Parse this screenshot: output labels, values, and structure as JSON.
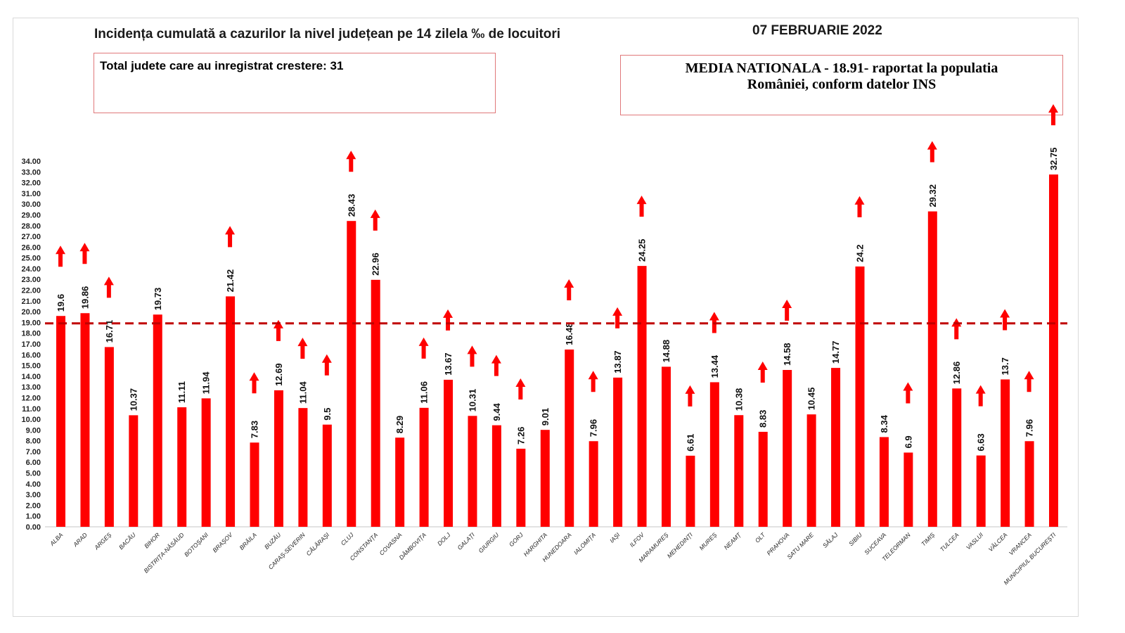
{
  "chart_data": {
    "type": "bar",
    "title": "Incidența cumulată a cazurilor la nivel județean pe 14 zilela ‰ de locuitori",
    "date": "07 FEBRUARIE 2022",
    "note_left": "Total judete care au inregistrat crestere: 31",
    "note_right_line1": "MEDIA NATIONALA - 18.91-  raportat la populatia",
    "note_right_line2": "României, conform datelor INS",
    "reference_line": {
      "value": 18.91,
      "style": "dashed",
      "color": "#c00000"
    },
    "ylim": [
      0,
      34
    ],
    "ytick_step": 1,
    "grid": false,
    "bar_color": "#ff0000",
    "arrow_color": "#ff0000",
    "categories": [
      "ALBA",
      "ARAD",
      "ARGEȘ",
      "BACĂU",
      "BIHOR",
      "BISTRIȚA-NĂSĂUD",
      "BOTOȘANI",
      "BRAȘOV",
      "BRĂILA",
      "BUZĂU",
      "CARAȘ-SEVERIN",
      "CĂLĂRAȘI",
      "CLUJ",
      "CONSTANȚA",
      "COVASNA",
      "DÂMBOVIȚA",
      "DOLJ",
      "GALAȚI",
      "GIURGIU",
      "GORJ",
      "HARGHITA",
      "HUNEDOARA",
      "IALOMIȚA",
      "IAȘI",
      "ILFOV",
      "MARAMUREȘ",
      "MEHEDINȚI",
      "MUREȘ",
      "NEAMȚ",
      "OLT",
      "PRAHOVA",
      "SATU MARE",
      "SĂLAJ",
      "SIBIU",
      "SUCEAVA",
      "TELEORMAN",
      "TIMIȘ",
      "TULCEA",
      "VASLUI",
      "VÂLCEA",
      "VRANCEA",
      "MUNICIPIUL BUCUREȘTI"
    ],
    "values": [
      19.6,
      19.86,
      16.71,
      10.37,
      19.73,
      11.11,
      11.94,
      21.42,
      7.83,
      12.69,
      11.04,
      9.5,
      28.43,
      22.96,
      8.29,
      11.06,
      13.67,
      10.31,
      9.44,
      7.26,
      9.01,
      16.48,
      7.96,
      13.87,
      24.25,
      14.88,
      6.61,
      13.44,
      10.38,
      8.83,
      14.58,
      10.45,
      14.77,
      24.2,
      8.34,
      6.9,
      29.32,
      12.86,
      6.63,
      13.7,
      7.96,
      32.75
    ],
    "increase": [
      true,
      true,
      true,
      false,
      false,
      false,
      false,
      true,
      true,
      true,
      true,
      true,
      true,
      true,
      false,
      true,
      true,
      true,
      true,
      true,
      false,
      true,
      true,
      true,
      true,
      false,
      true,
      true,
      false,
      true,
      true,
      false,
      false,
      true,
      false,
      true,
      true,
      true,
      true,
      true,
      true,
      true
    ]
  }
}
